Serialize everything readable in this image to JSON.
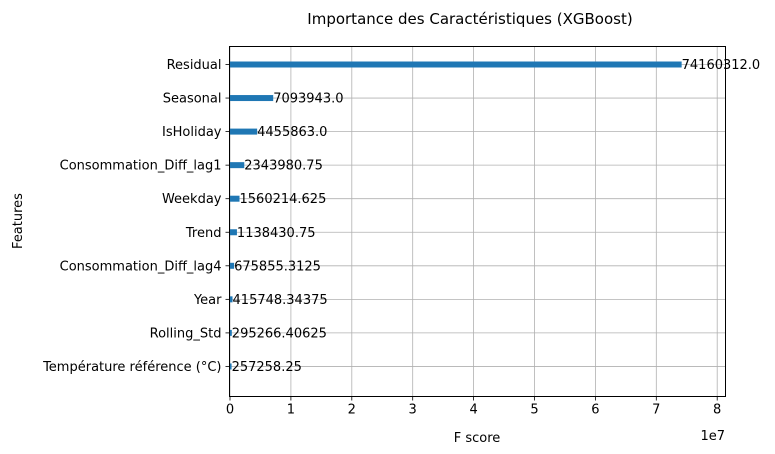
{
  "chart_data": {
    "type": "bar",
    "orientation": "horizontal",
    "title": "Importance des Caractéristiques (XGBoost)",
    "xlabel": "F score",
    "ylabel": "Features",
    "x_offset_text": "1e7",
    "xlim": [
      0,
      81500000
    ],
    "x_ticks": [
      0,
      10000000,
      20000000,
      30000000,
      40000000,
      50000000,
      60000000,
      70000000,
      80000000
    ],
    "x_tick_labels": [
      "0",
      "1",
      "2",
      "3",
      "4",
      "5",
      "6",
      "7",
      "8"
    ],
    "grid": true,
    "bar_color": "#1f77b4",
    "categories": [
      "Residual",
      "Seasonal",
      "IsHoliday",
      "Consommation_Diff_lag1",
      "Weekday",
      "Trend",
      "Consommation_Diff_lag4",
      "Year",
      "Rolling_Std",
      "Température référence (°C)"
    ],
    "values": [
      74160312.0,
      7093943.0,
      4455863.0,
      2343980.75,
      1560214.625,
      1138430.75,
      675855.3125,
      415748.34375,
      295266.40625,
      257258.25
    ],
    "value_labels": [
      "74160312.0",
      "7093943.0",
      "4455863.0",
      "2343980.75",
      "1560214.625",
      "1138430.75",
      "675855.3125",
      "415748.34375",
      "295266.40625",
      "257258.25"
    ]
  }
}
